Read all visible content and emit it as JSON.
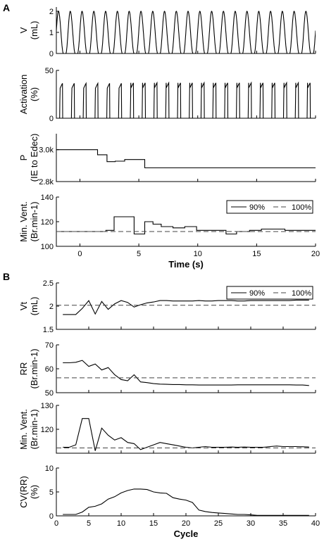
{
  "panel_labels": [
    "A",
    "B"
  ],
  "chart_data": [
    {
      "type": "line",
      "panel": "A",
      "ylabel": [
        "V",
        "(mL)"
      ],
      "ylim": [
        0,
        2.2
      ],
      "yticks": [
        0,
        1,
        2
      ],
      "xlim": [
        -2,
        20
      ],
      "breath_period_s": 1.0,
      "breath_phase_s": -1.2,
      "series": [
        {
          "peaks_mL": 2.0
        }
      ]
    },
    {
      "type": "line",
      "panel": "A",
      "ylabel": [
        "Activation",
        "(%)"
      ],
      "ylim": [
        0,
        50
      ],
      "yticks": [
        0,
        50
      ],
      "xlim": [
        -2,
        20
      ],
      "breath_period_s": 1.0,
      "series": [
        {
          "peaks_pct": 37
        }
      ]
    },
    {
      "type": "line",
      "panel": "A",
      "ylabel": [
        "P",
        "(IE to Edec)"
      ],
      "ylim": [
        2800,
        3100
      ],
      "yticks": [
        {
          "v": 2800,
          "label": "2.8k"
        },
        {
          "v": 3000,
          "label": "3.0k"
        }
      ],
      "xlim": [
        -2,
        20
      ],
      "series": [
        {
          "x": [
            -2,
            1.5,
            1.5,
            2.3,
            2.3,
            3.0,
            3.0,
            3.8,
            3.8,
            5.5,
            5.5,
            20
          ],
          "y": [
            3000,
            3000,
            2968,
            2968,
            2925,
            2925,
            2928,
            2928,
            2938,
            2938,
            2886,
            2886
          ]
        }
      ]
    },
    {
      "type": "line",
      "panel": "A",
      "ylabel": [
        "Min. Vent.",
        "(Br.min-1)"
      ],
      "ylim": [
        100,
        140
      ],
      "yticks": [
        100,
        120,
        140
      ],
      "xlim": [
        -2,
        20
      ],
      "xticks": [
        0,
        5,
        10,
        15,
        20
      ],
      "xlabel": "Time (s)",
      "legend": {
        "position": "top-right"
      },
      "series": [
        {
          "name": "90%",
          "style": "solid",
          "x": [
            -2,
            2.2,
            2.2,
            2.9,
            2.9,
            4.6,
            4.6,
            5.5,
            5.5,
            6.2,
            6.2,
            6.9,
            6.9,
            7.9,
            7.9,
            8.9,
            8.9,
            9.9,
            9.9,
            12.4,
            12.4,
            13.3,
            13.3,
            14.4,
            14.4,
            15.4,
            15.4,
            17.4,
            17.4,
            20
          ],
          "y": [
            112,
            112,
            113,
            113,
            124,
            124,
            110,
            110,
            120,
            120,
            118,
            118,
            116,
            116,
            115,
            115,
            116,
            116,
            113,
            113,
            110,
            110,
            112,
            112,
            113,
            113,
            114,
            114,
            113,
            113
          ]
        },
        {
          "name": "100%",
          "style": "dashed",
          "x": [
            -2,
            20
          ],
          "y": [
            112,
            112
          ]
        }
      ]
    },
    {
      "type": "line",
      "panel": "B",
      "ylabel": [
        "Vt",
        "(mL)"
      ],
      "ylim": [
        1.5,
        2.5
      ],
      "yticks": [
        1.5,
        2,
        2.5
      ],
      "xlim": [
        0,
        40
      ],
      "legend": {
        "position": "top-right"
      },
      "series": [
        {
          "name": "90%",
          "style": "solid",
          "x": [
            1,
            2,
            3,
            4,
            5,
            6,
            7,
            8,
            9,
            10,
            11,
            12,
            13,
            14,
            15,
            16,
            17,
            18,
            19,
            20,
            21,
            22,
            23,
            24,
            25,
            26,
            27,
            28,
            29,
            30,
            31,
            32,
            33,
            34,
            35,
            36,
            37,
            38,
            39
          ],
          "y": [
            1.82,
            1.82,
            1.82,
            1.95,
            2.12,
            1.83,
            2.1,
            1.93,
            2.05,
            2.12,
            2.08,
            1.98,
            2.03,
            2.07,
            2.09,
            2.12,
            2.12,
            2.11,
            2.11,
            2.11,
            2.11,
            2.12,
            2.11,
            2.11,
            2.12,
            2.12,
            2.12,
            2.11,
            2.11,
            2.12,
            2.12,
            2.12,
            2.12,
            2.12,
            2.12,
            2.12,
            2.13,
            2.13,
            2.13
          ]
        },
        {
          "name": "100%",
          "style": "dashed",
          "x": [
            0,
            40
          ],
          "y": [
            2.02,
            2.02
          ]
        }
      ]
    },
    {
      "type": "line",
      "panel": "B",
      "ylabel": [
        "RR",
        "(Br.min-1)"
      ],
      "ylim": [
        50,
        70
      ],
      "yticks": [
        50,
        60,
        70
      ],
      "xlim": [
        0,
        40
      ],
      "series": [
        {
          "name": "90%",
          "style": "solid",
          "x": [
            1,
            2,
            3,
            4,
            5,
            6,
            7,
            8,
            9,
            10,
            11,
            12,
            13,
            14,
            15,
            16,
            17,
            18,
            19,
            20,
            21,
            22,
            23,
            24,
            25,
            26,
            27,
            28,
            29,
            30,
            31,
            32,
            33,
            34,
            35,
            36,
            37,
            38,
            39
          ],
          "y": [
            62.5,
            62.5,
            62.7,
            63.5,
            61,
            62,
            59.5,
            60.5,
            57.5,
            55.5,
            55,
            57.5,
            54.5,
            54.2,
            53.8,
            53.6,
            53.5,
            53.4,
            53.4,
            53.3,
            53.3,
            53.2,
            53.2,
            53.2,
            53.2,
            53.2,
            53.2,
            53.3,
            53.3,
            53.3,
            53.3,
            53.3,
            53.3,
            53.3,
            53.3,
            53.3,
            53.2,
            53.2,
            53
          ]
        },
        {
          "name": "100%",
          "style": "dashed",
          "x": [
            0,
            40
          ],
          "y": [
            56.2,
            56.2
          ]
        }
      ]
    },
    {
      "type": "line",
      "panel": "B",
      "ylabel": [
        "Min. Vent.",
        "(Br.min-1)"
      ],
      "ylim": [
        110,
        130
      ],
      "yticks": [
        120,
        130
      ],
      "xlim": [
        0,
        40
      ],
      "series": [
        {
          "name": "90%",
          "style": "solid",
          "x": [
            1,
            2,
            3,
            4,
            5,
            6,
            7,
            8,
            9,
            10,
            11,
            12,
            13,
            14,
            15,
            16,
            17,
            18,
            19,
            20,
            21,
            22,
            23,
            24,
            25,
            26,
            27,
            28,
            29,
            30,
            31,
            32,
            33,
            34,
            35,
            36,
            37,
            38,
            39
          ],
          "y": [
            112.5,
            112.5,
            113.5,
            124.5,
            124.5,
            111,
            120.5,
            117.5,
            115.5,
            116.5,
            114.5,
            114,
            111.5,
            112.5,
            113.5,
            114.5,
            114,
            113.5,
            113,
            112.5,
            112.2,
            112.5,
            112.8,
            112.5,
            112.5,
            112.5,
            112.6,
            112.5,
            112.6,
            112.5,
            112.5,
            112.5,
            112.8,
            113,
            112.8,
            112.8,
            112.8,
            112.7,
            112.6
          ]
        },
        {
          "name": "100%",
          "style": "dashed",
          "x": [
            0,
            40
          ],
          "y": [
            112.2,
            112.2
          ]
        }
      ]
    },
    {
      "type": "line",
      "panel": "B",
      "ylabel": [
        "CV(RR)",
        "(%)"
      ],
      "ylim": [
        0,
        10
      ],
      "yticks": [
        0,
        5,
        10
      ],
      "xlim": [
        0,
        40
      ],
      "xticks": [
        0,
        5,
        10,
        15,
        20,
        25,
        30,
        35,
        40
      ],
      "xlabel": "Cycle",
      "series": [
        {
          "name": "90%",
          "style": "solid",
          "x": [
            1,
            2,
            3,
            4,
            5,
            6,
            7,
            8,
            9,
            10,
            11,
            12,
            13,
            14,
            15,
            16,
            17,
            18,
            19,
            20,
            21,
            22,
            23,
            24,
            25,
            26,
            27,
            28,
            29,
            30,
            31,
            32,
            33,
            34,
            35,
            36,
            37,
            38,
            39
          ],
          "y": [
            0.3,
            0.3,
            0.3,
            0.8,
            1.8,
            2,
            2.5,
            3.5,
            4,
            4.8,
            5.3,
            5.6,
            5.6,
            5.5,
            5,
            4.8,
            4.7,
            3.8,
            3.5,
            3.3,
            2.8,
            1.2,
            0.9,
            0.7,
            0.6,
            0.5,
            0.4,
            0.3,
            0.3,
            0.2,
            0.1,
            0.1,
            0.1,
            0.1,
            0.1,
            0.1,
            0.1,
            0.1,
            0.1
          ]
        }
      ]
    }
  ]
}
